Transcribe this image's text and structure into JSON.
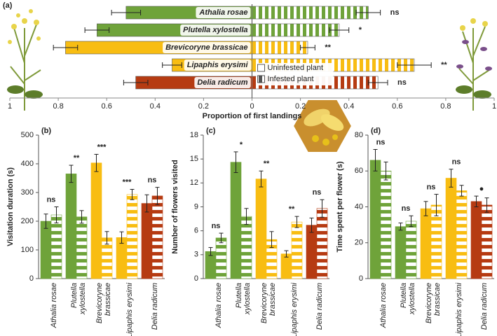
{
  "chart_data": [
    {
      "type": "diverging_bar",
      "panel_label": "(a)",
      "xlabel": "Proportion of first landings",
      "categories": [
        "Athalia rosae",
        "Plutella xylostella",
        "Brevicoryne brassicae",
        "Lipaphis erysimi",
        "Delia radicum"
      ],
      "colors": [
        "#6fa33a",
        "#6fa33a",
        "#f8bd12",
        "#f8bd12",
        "#b63b12"
      ],
      "series": [
        {
          "name": "Uninfested plant",
          "pattern": "solid",
          "values": [
            -0.52,
            -0.64,
            -0.77,
            -0.33,
            -0.48
          ],
          "errors": [
            0.06,
            0.05,
            0.05,
            0.04,
            0.05
          ]
        },
        {
          "name": "Infested plant",
          "pattern": "striped",
          "values": [
            0.48,
            0.36,
            0.23,
            0.67,
            0.52
          ],
          "errors": [
            0.05,
            0.04,
            0.03,
            0.07,
            0.04
          ]
        }
      ],
      "significance": [
        "ns",
        "*",
        "**",
        "**",
        "ns"
      ],
      "xlim": [
        -1,
        1
      ],
      "xticks": [
        {
          "value": -1,
          "label": "1"
        },
        {
          "value": -0.8,
          "label": "0.8"
        },
        {
          "value": -0.6,
          "label": "0.6"
        },
        {
          "value": -0.4,
          "label": "0.4"
        },
        {
          "value": -0.2,
          "label": "0.2"
        },
        0,
        0.2,
        0.4,
        0.6,
        0.8,
        1
      ],
      "legend": "center"
    },
    {
      "type": "grouped_bar",
      "panel_label": "(b)",
      "ylabel": "Visitation duration (s)",
      "categories": [
        [
          "Athalia rosae"
        ],
        [
          "Plutella",
          "xylostella"
        ],
        [
          "Brevicoryne",
          "brassicae"
        ],
        [
          "Lipaphis erysimi"
        ],
        [
          "Delia radicum"
        ]
      ],
      "colors": [
        "#6fa33a",
        "#6fa33a",
        "#f8bd12",
        "#f8bd12",
        "#b63b12"
      ],
      "series": [
        {
          "pattern": "solid",
          "values": [
            200,
            365,
            403,
            143,
            262
          ],
          "errors": [
            25,
            30,
            30,
            20,
            30
          ]
        },
        {
          "pattern": "striped",
          "values": [
            222,
            215,
            142,
            293,
            288
          ],
          "errors": [
            28,
            22,
            22,
            18,
            30
          ]
        }
      ],
      "significance": [
        "ns",
        "**",
        "***",
        "***",
        "ns"
      ],
      "ylim": [
        0,
        500
      ],
      "yticks": [
        0,
        100,
        200,
        300,
        400,
        500
      ]
    },
    {
      "type": "grouped_bar",
      "panel_label": "(c)",
      "ylabel": "Number of flowers visited",
      "categories": [
        [
          "Athalia rosae"
        ],
        [
          "Plutella",
          "xylostella"
        ],
        [
          "Brevicoryne",
          "brassicae"
        ],
        [
          "Lipaphis erysimi"
        ],
        [
          "Delia radicum"
        ]
      ],
      "colors": [
        "#6fa33a",
        "#6fa33a",
        "#f8bd12",
        "#f8bd12",
        "#b63b12"
      ],
      "series": [
        {
          "pattern": "solid",
          "values": [
            3.4,
            14.6,
            12.5,
            3.1,
            6.7
          ],
          "errors": [
            0.5,
            1.3,
            1.0,
            0.4,
            0.9
          ]
        },
        {
          "pattern": "striped",
          "values": [
            5.1,
            7.8,
            4.9,
            7.1,
            8.8
          ],
          "errors": [
            0.6,
            1.0,
            1.0,
            0.7,
            1.1
          ]
        }
      ],
      "significance": [
        "ns",
        "*",
        "**",
        "**",
        "ns"
      ],
      "ylim": [
        0,
        18
      ],
      "yticks": [
        0,
        3,
        6,
        9,
        12,
        15,
        18
      ]
    },
    {
      "type": "grouped_bar",
      "panel_label": "(d)",
      "ylabel": "Time spent per flower (s)",
      "categories": [
        [
          "Athalia rosae"
        ],
        [
          "Plutella",
          "xylostella"
        ],
        [
          "Brevicoryne",
          "brassicae"
        ],
        [
          "Lipaphis erysimi"
        ],
        [
          "Delia radicum"
        ]
      ],
      "colors": [
        "#6fa33a",
        "#6fa33a",
        "#f8bd12",
        "#f8bd12",
        "#b63b12"
      ],
      "series": [
        {
          "pattern": "solid",
          "values": [
            66,
            29,
            39,
            56,
            43
          ],
          "errors": [
            6,
            2,
            4,
            5,
            3
          ]
        },
        {
          "pattern": "striped",
          "values": [
            60,
            32,
            41,
            49,
            41
          ],
          "errors": [
            5,
            3,
            6,
            3,
            4
          ]
        }
      ],
      "significance": [
        "ns",
        "ns",
        "ns",
        "ns",
        "●"
      ],
      "ylim": [
        0,
        80
      ],
      "yticks": [
        0,
        20,
        40,
        60,
        80
      ]
    }
  ]
}
